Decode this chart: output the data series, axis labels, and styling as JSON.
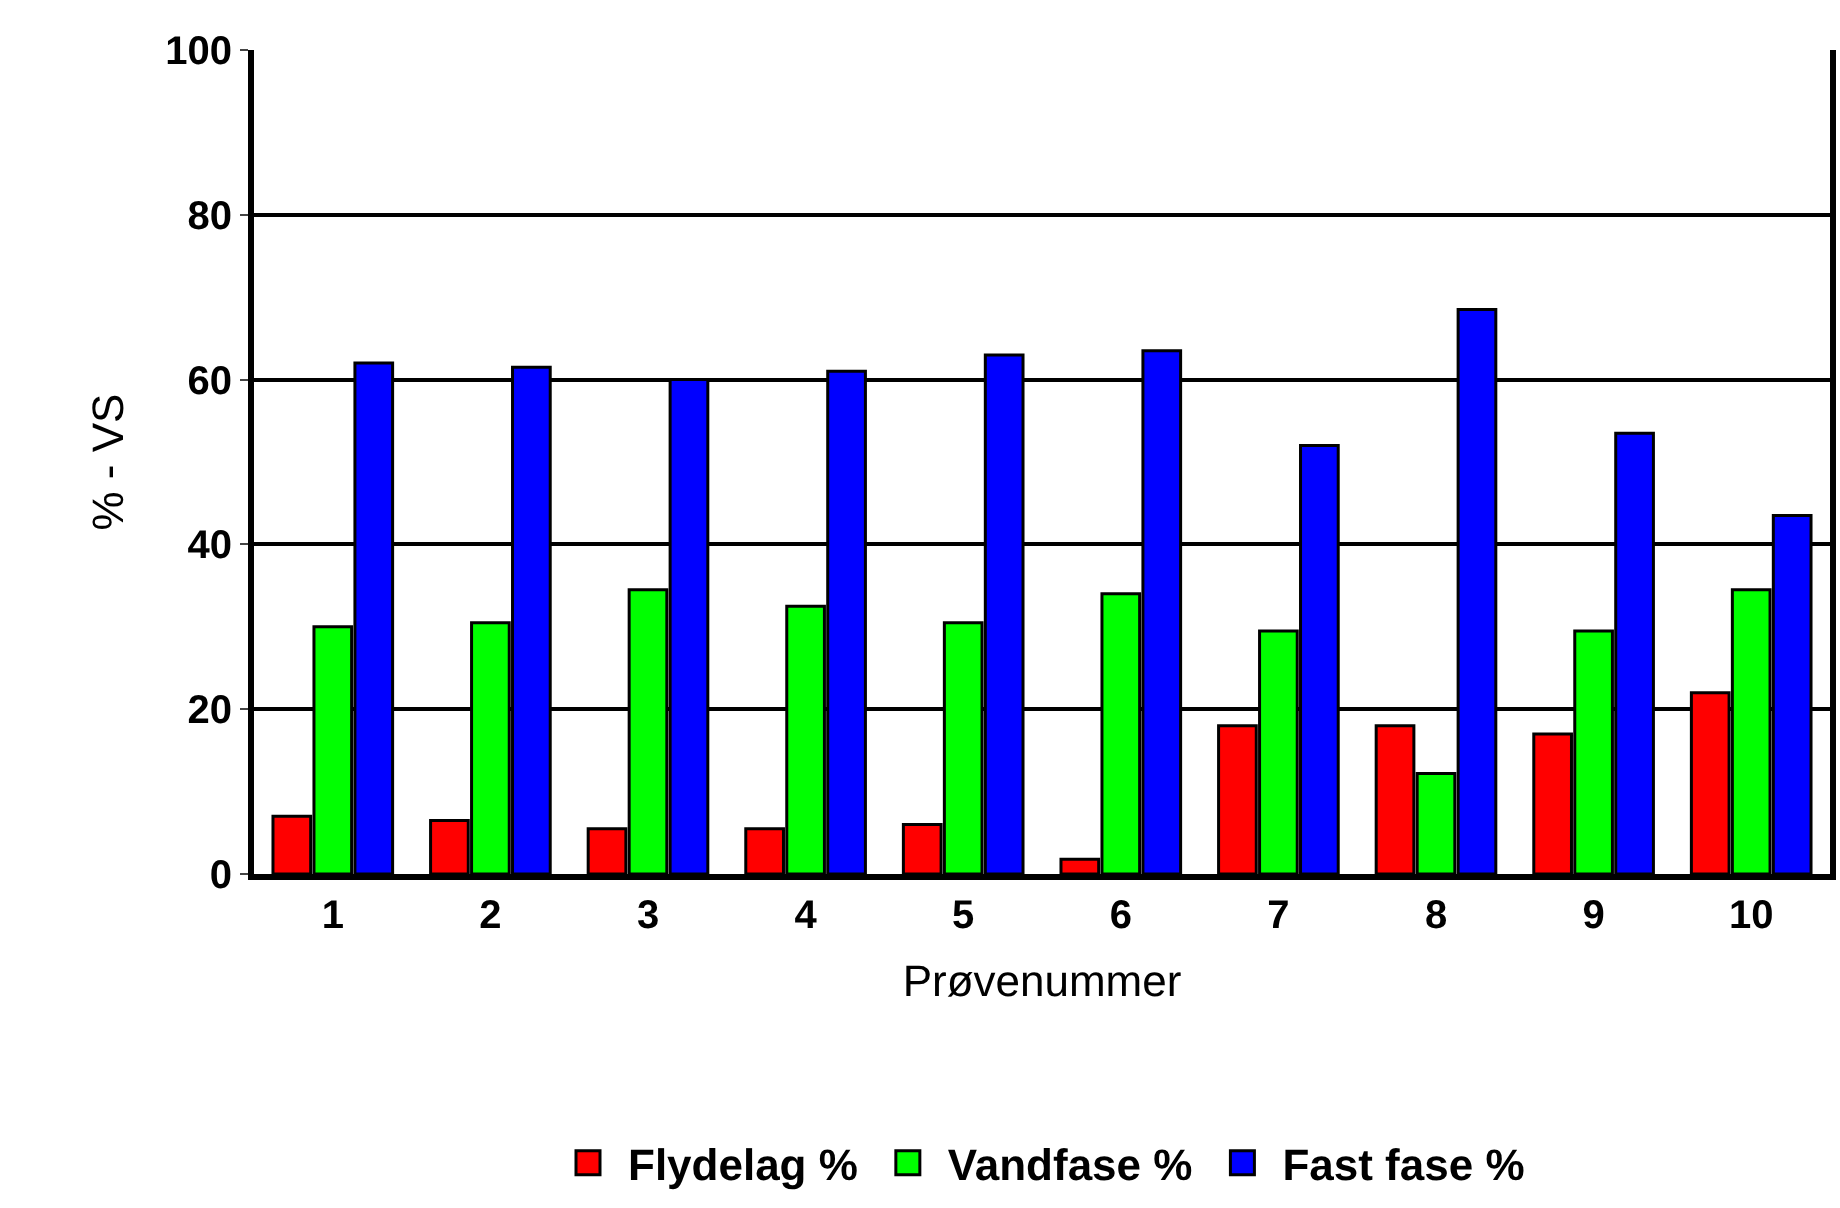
{
  "chart_data": {
    "type": "bar",
    "xlabel": "Prøvenummer",
    "ylabel": "% - VS",
    "categories": [
      "1",
      "2",
      "3",
      "4",
      "5",
      "6",
      "7",
      "8",
      "9",
      "10"
    ],
    "series": [
      {
        "name": "Flydelag %",
        "color": "#ff0000",
        "values": [
          7,
          6.5,
          5.5,
          5.5,
          6,
          1.8,
          18,
          18,
          17,
          22
        ]
      },
      {
        "name": "Vandfase %",
        "color": "#00ff00",
        "values": [
          30,
          30.5,
          34.5,
          32.5,
          30.5,
          34,
          29.5,
          12.2,
          29.5,
          34.5
        ]
      },
      {
        "name": "Fast fase %",
        "color": "#0000ff",
        "values": [
          62,
          61.5,
          60,
          61,
          63,
          63.5,
          52,
          68.5,
          53.5,
          43.5
        ]
      }
    ],
    "ylim": [
      0,
      100
    ],
    "yticks": [
      0,
      20,
      40,
      60,
      80,
      100
    ],
    "grid": "y",
    "legend": "bottom"
  }
}
